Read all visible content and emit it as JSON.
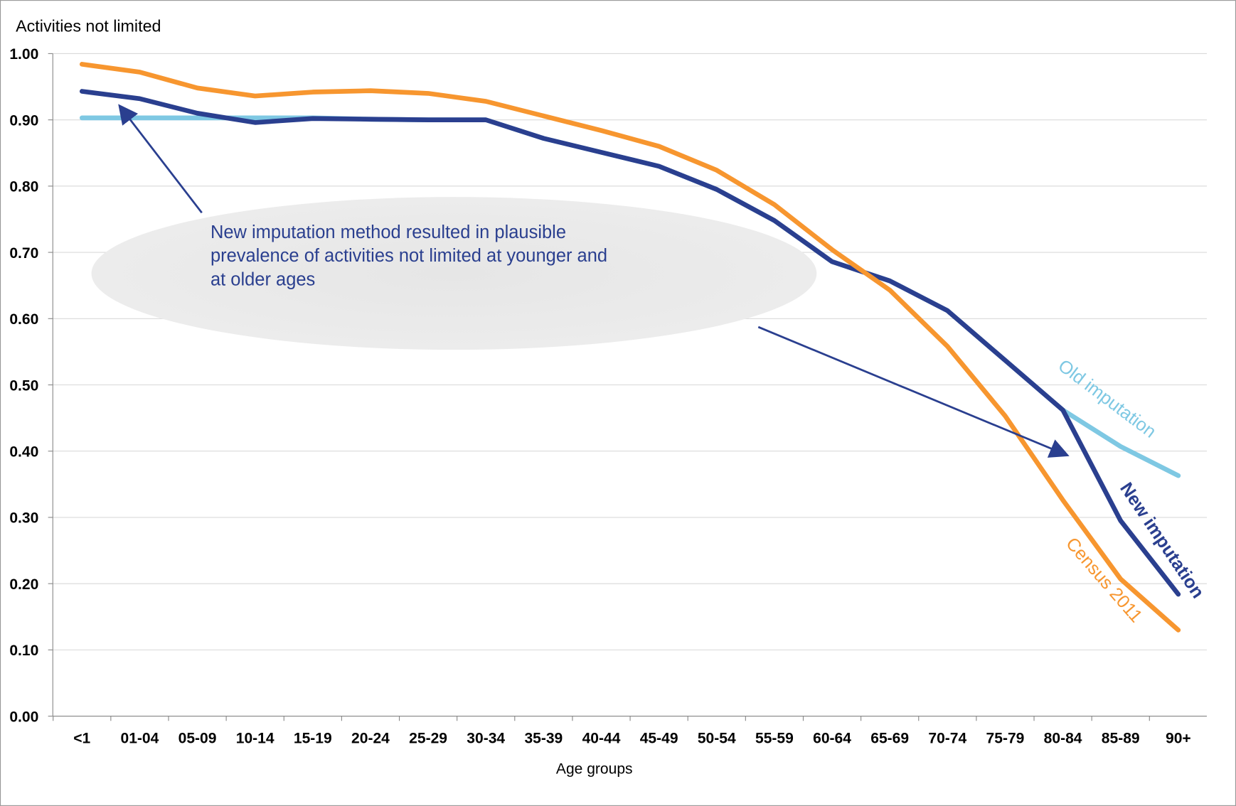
{
  "chart_data": {
    "type": "line",
    "y_label": "Activities not limited",
    "x_label": "Age groups",
    "annotation": "New imputation method resulted in plausible prevalence of activities not limited at younger and at older ages",
    "categories": [
      "<1",
      "01-04",
      "05-09",
      "10-14",
      "15-19",
      "20-24",
      "25-29",
      "30-34",
      "35-39",
      "40-44",
      "45-49",
      "50-54",
      "55-59",
      "60-64",
      "65-69",
      "70-74",
      "75-79",
      "80-84",
      "85-89",
      "90+"
    ],
    "series": [
      {
        "name": "Census 2011",
        "color": "#f7962f",
        "values": [
          0.984,
          0.972,
          0.948,
          0.936,
          0.942,
          0.944,
          0.94,
          0.928,
          0.906,
          0.884,
          0.86,
          0.824,
          0.772,
          0.704,
          0.643,
          0.558,
          0.453,
          0.326,
          0.207,
          0.13
        ]
      },
      {
        "name": "New imputation",
        "color": "#2a3f8f",
        "values": [
          0.943,
          0.932,
          0.91,
          0.896,
          0.902,
          0.901,
          0.9,
          0.9,
          0.872,
          0.851,
          0.83,
          0.795,
          0.748,
          0.686,
          0.657,
          0.612,
          0.537,
          0.462,
          0.295,
          0.184
        ]
      },
      {
        "name": "Old imputation",
        "color": "#7ec8e3",
        "values": [
          0.903,
          0.903,
          0.903,
          0.903,
          0.903,
          0.901,
          0.9,
          0.9,
          0.872,
          0.851,
          0.83,
          0.795,
          0.748,
          0.686,
          0.657,
          0.612,
          0.537,
          0.462,
          0.407,
          0.363
        ]
      }
    ],
    "ylim": [
      0,
      1
    ],
    "yticks": [
      {
        "value": 0,
        "label": "0.00"
      },
      {
        "value": 0.1,
        "label": "0.10"
      },
      {
        "value": 0.2,
        "label": "0.20"
      },
      {
        "value": 0.3,
        "label": "0.30"
      },
      {
        "value": 0.4,
        "label": "0.40"
      },
      {
        "value": 0.5,
        "label": "0.50"
      },
      {
        "value": 0.6,
        "label": "0.60"
      },
      {
        "value": 0.7,
        "label": "0.70"
      },
      {
        "value": 0.8,
        "label": "0.80"
      },
      {
        "value": 0.9,
        "label": "0.90"
      },
      {
        "value": 1,
        "label": "1.00"
      }
    ],
    "grid": true
  }
}
